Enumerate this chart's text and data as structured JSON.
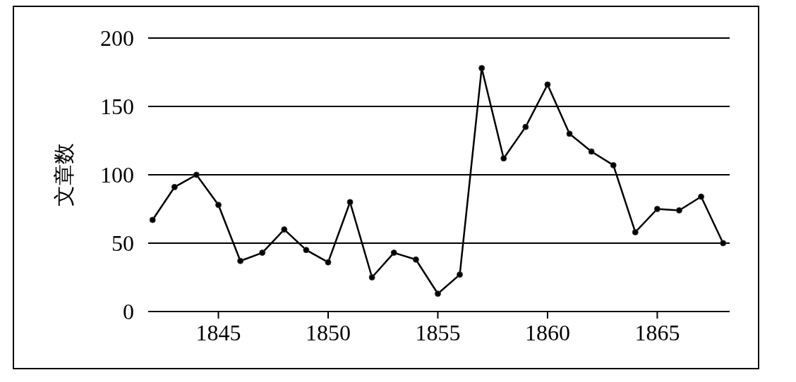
{
  "chart_data": {
    "type": "line",
    "ylabel": "文章数",
    "x": [
      1842,
      1843,
      1844,
      1845,
      1846,
      1847,
      1848,
      1849,
      1850,
      1851,
      1852,
      1853,
      1854,
      1855,
      1856,
      1857,
      1858,
      1859,
      1860,
      1861,
      1862,
      1863,
      1864,
      1865,
      1866,
      1867,
      1868
    ],
    "series": [
      {
        "color": "#000000",
        "values": [
          67,
          91,
          100,
          78,
          37,
          43,
          60,
          45,
          36,
          80,
          25,
          43,
          38,
          13,
          27,
          178,
          112,
          135,
          166,
          130,
          117,
          107,
          58,
          75,
          74,
          84,
          50
        ]
      }
    ],
    "xlim": [
      1841.8,
      1868.3
    ],
    "xticks": [
      1845,
      1850,
      1855,
      1860,
      1865
    ],
    "ylim": [
      0,
      200
    ],
    "yticks": [
      0,
      50,
      100,
      150,
      200
    ],
    "grid": "y",
    "legend": false,
    "marker": "circle",
    "line_style": "solid"
  }
}
